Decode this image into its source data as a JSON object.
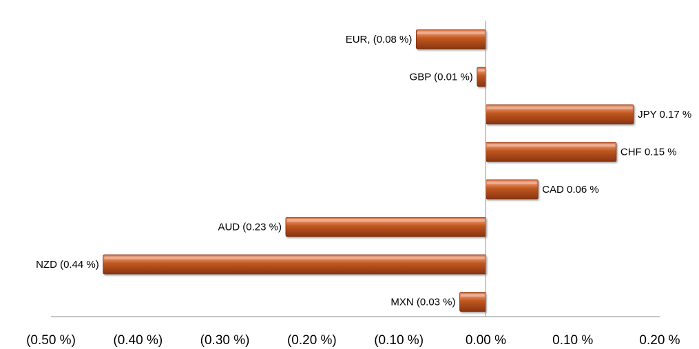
{
  "chart_data": {
    "type": "bar",
    "orientation": "horizontal",
    "categories": [
      "EUR",
      "GBP",
      "JPY",
      "CHF",
      "CAD",
      "AUD",
      "NZD",
      "MXN"
    ],
    "values": [
      -0.08,
      -0.01,
      0.17,
      0.15,
      0.06,
      -0.23,
      -0.44,
      -0.03
    ],
    "data_labels": [
      "EUR, (0.08 %)",
      "GBP (0.01 %)",
      "JPY 0.17 %",
      "CHF 0.15 %",
      "CAD 0.06 %",
      "AUD (0.23 %)",
      "NZD (0.44 %)",
      "MXN (0.03 %)"
    ],
    "xlim": [
      -0.5,
      0.2
    ],
    "xticks": [
      -0.5,
      -0.4,
      -0.3,
      -0.2,
      -0.1,
      0.0,
      0.1,
      0.2
    ],
    "xtick_labels": [
      "(0.50 %)",
      "(0.40 %)",
      "(0.30 %)",
      "(0.20 %)",
      "(0.10 %)",
      "0.00 %",
      "0.10 %",
      "0.20 %"
    ],
    "title": "",
    "xlabel": "",
    "ylabel": "",
    "grid": false,
    "legend": "none",
    "bar_color": "#c0581f",
    "bar_highlight": "#e8916a",
    "bar_shadow": "#7a2f0d",
    "axis_color": "#8c8c8c"
  }
}
